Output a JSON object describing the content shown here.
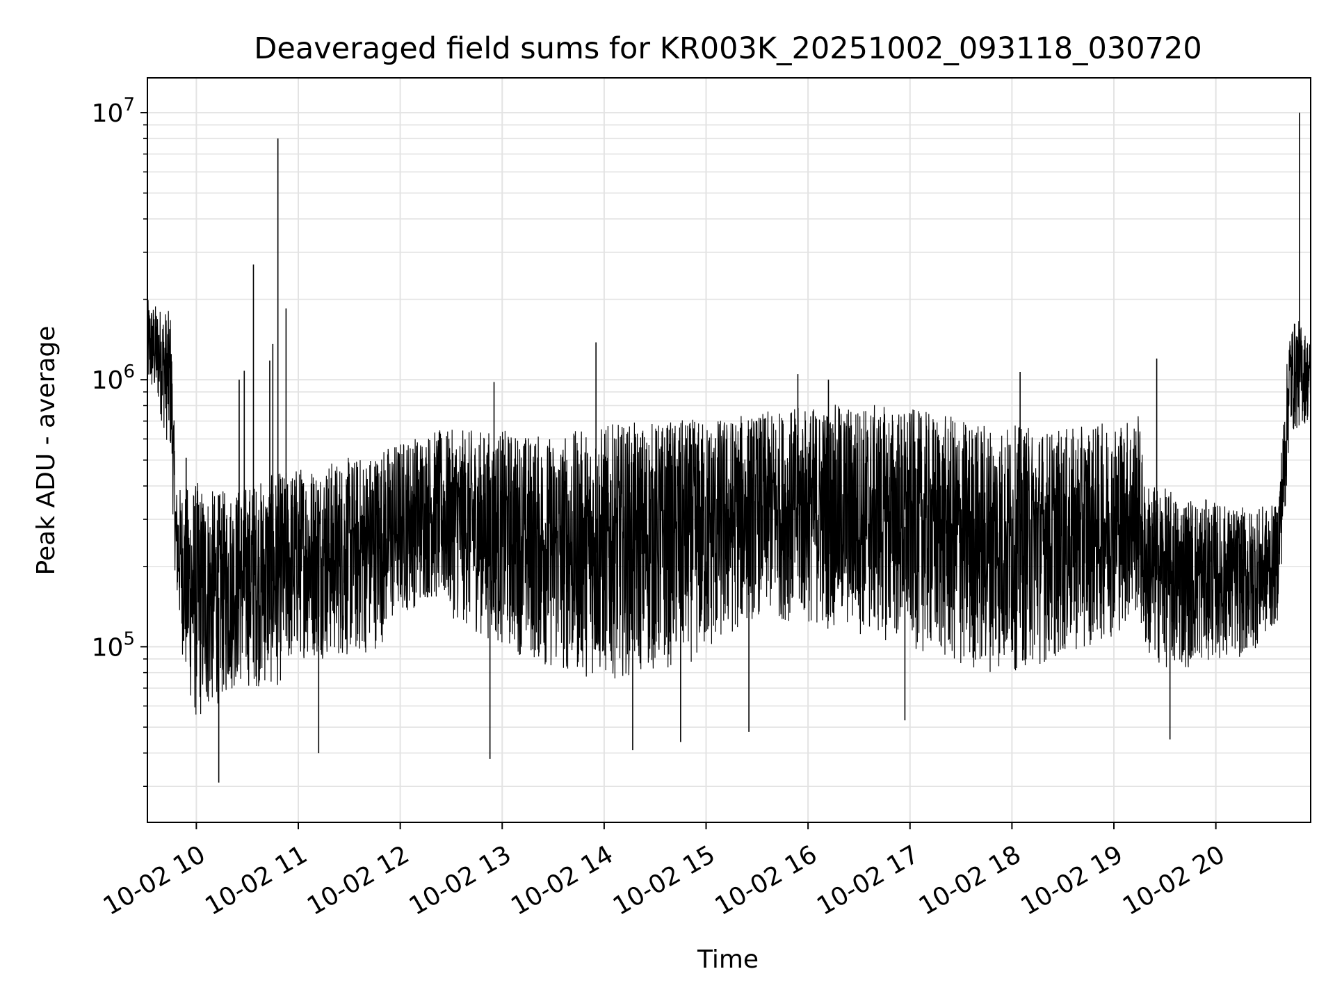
{
  "chart_data": {
    "type": "line",
    "title": "Deaveraged field sums for KR003K_20251002_093118_030720",
    "xlabel": "Time",
    "ylabel": "Peak ADU - average",
    "yscale": "log",
    "ylim": [
      22000,
      13500000
    ],
    "xlim_hours": [
      9.52,
      20.93
    ],
    "grid": true,
    "x_ticks": [
      {
        "hour": 10,
        "label": "10-02 10"
      },
      {
        "hour": 11,
        "label": "10-02 11"
      },
      {
        "hour": 12,
        "label": "10-02 12"
      },
      {
        "hour": 13,
        "label": "10-02 13"
      },
      {
        "hour": 14,
        "label": "10-02 14"
      },
      {
        "hour": 15,
        "label": "10-02 15"
      },
      {
        "hour": 16,
        "label": "10-02 16"
      },
      {
        "hour": 17,
        "label": "10-02 17"
      },
      {
        "hour": 18,
        "label": "10-02 18"
      },
      {
        "hour": 19,
        "label": "10-02 19"
      },
      {
        "hour": 20,
        "label": "10-02 20"
      }
    ],
    "y_ticks": [
      {
        "value": 100000,
        "base": "10",
        "exp": "5"
      },
      {
        "value": 1000000,
        "base": "10",
        "exp": "6"
      },
      {
        "value": 10000000,
        "base": "10",
        "exp": "7"
      }
    ],
    "series": [
      {
        "name": "Peak ADU - average",
        "color": "#000000",
        "envelope": {
          "hours": [
            9.52,
            9.62,
            9.75,
            9.8,
            9.9,
            10.0,
            10.2,
            10.4,
            10.6,
            10.8,
            11.0,
            11.3,
            11.6,
            11.8,
            12.0,
            12.3,
            12.6,
            13.0,
            13.5,
            14.0,
            14.5,
            15.0,
            15.5,
            16.0,
            16.5,
            17.0,
            17.5,
            18.0,
            18.5,
            19.0,
            19.25,
            19.3,
            19.6,
            20.0,
            20.3,
            20.6,
            20.68,
            20.72,
            20.8,
            20.93
          ],
          "low": [
            900000,
            800000,
            500000,
            150000,
            70000,
            50000,
            60000,
            70000,
            70000,
            70000,
            90000,
            90000,
            90000,
            100000,
            130000,
            150000,
            120000,
            100000,
            80000,
            75000,
            80000,
            90000,
            130000,
            120000,
            110000,
            100000,
            80000,
            80000,
            90000,
            110000,
            130000,
            90000,
            80000,
            90000,
            90000,
            120000,
            300000,
            600000,
            650000,
            700000
          ],
          "high": [
            2000000,
            1900000,
            1800000,
            400000,
            400000,
            420000,
            380000,
            400000,
            420000,
            450000,
            480000,
            500000,
            520000,
            560000,
            600000,
            650000,
            650000,
            650000,
            620000,
            680000,
            700000,
            720000,
            750000,
            800000,
            820000,
            780000,
            720000,
            680000,
            650000,
            700000,
            750000,
            420000,
            380000,
            350000,
            330000,
            340000,
            900000,
            1600000,
            1700000,
            1400000
          ]
        },
        "spikes": [
          {
            "hour": 9.9,
            "value": 510000
          },
          {
            "hour": 10.22,
            "value": 31000
          },
          {
            "hour": 10.42,
            "value": 1000000
          },
          {
            "hour": 10.47,
            "value": 1080000
          },
          {
            "hour": 10.56,
            "value": 2700000
          },
          {
            "hour": 10.72,
            "value": 1180000
          },
          {
            "hour": 10.75,
            "value": 1360000
          },
          {
            "hour": 10.8,
            "value": 8000000
          },
          {
            "hour": 10.88,
            "value": 1850000
          },
          {
            "hour": 11.2,
            "value": 40000
          },
          {
            "hour": 12.88,
            "value": 38000
          },
          {
            "hour": 12.92,
            "value": 980000
          },
          {
            "hour": 13.92,
            "value": 1380000
          },
          {
            "hour": 14.28,
            "value": 41000
          },
          {
            "hour": 14.75,
            "value": 44000
          },
          {
            "hour": 15.42,
            "value": 48000
          },
          {
            "hour": 15.9,
            "value": 1050000
          },
          {
            "hour": 16.2,
            "value": 1000000
          },
          {
            "hour": 16.95,
            "value": 53000
          },
          {
            "hour": 18.08,
            "value": 1070000
          },
          {
            "hour": 19.42,
            "value": 1200000
          },
          {
            "hour": 19.55,
            "value": 45000
          },
          {
            "hour": 20.82,
            "value": 10000000
          }
        ]
      }
    ]
  }
}
